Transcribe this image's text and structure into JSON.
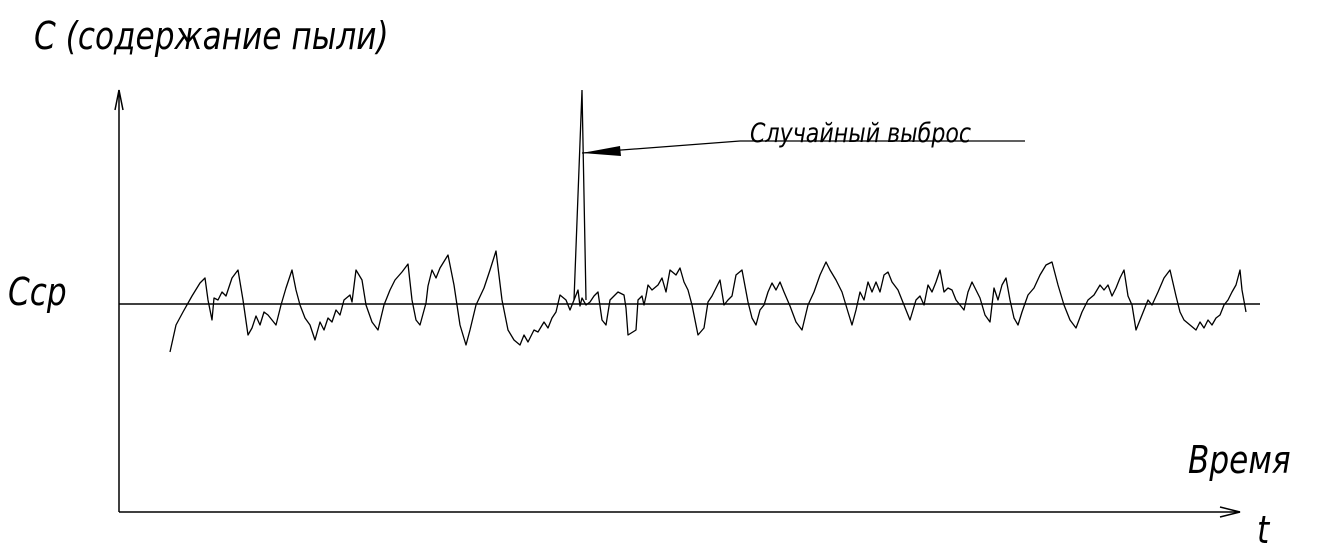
{
  "diagram": {
    "y_axis_title": "С (содержание пыли)",
    "mean_label": "Сср",
    "annotation": "Случайный выброс",
    "x_axis_title": "Время",
    "x_axis_symbol": "t"
  },
  "colors": {
    "ink": "#000000",
    "background": "#ffffff"
  }
}
